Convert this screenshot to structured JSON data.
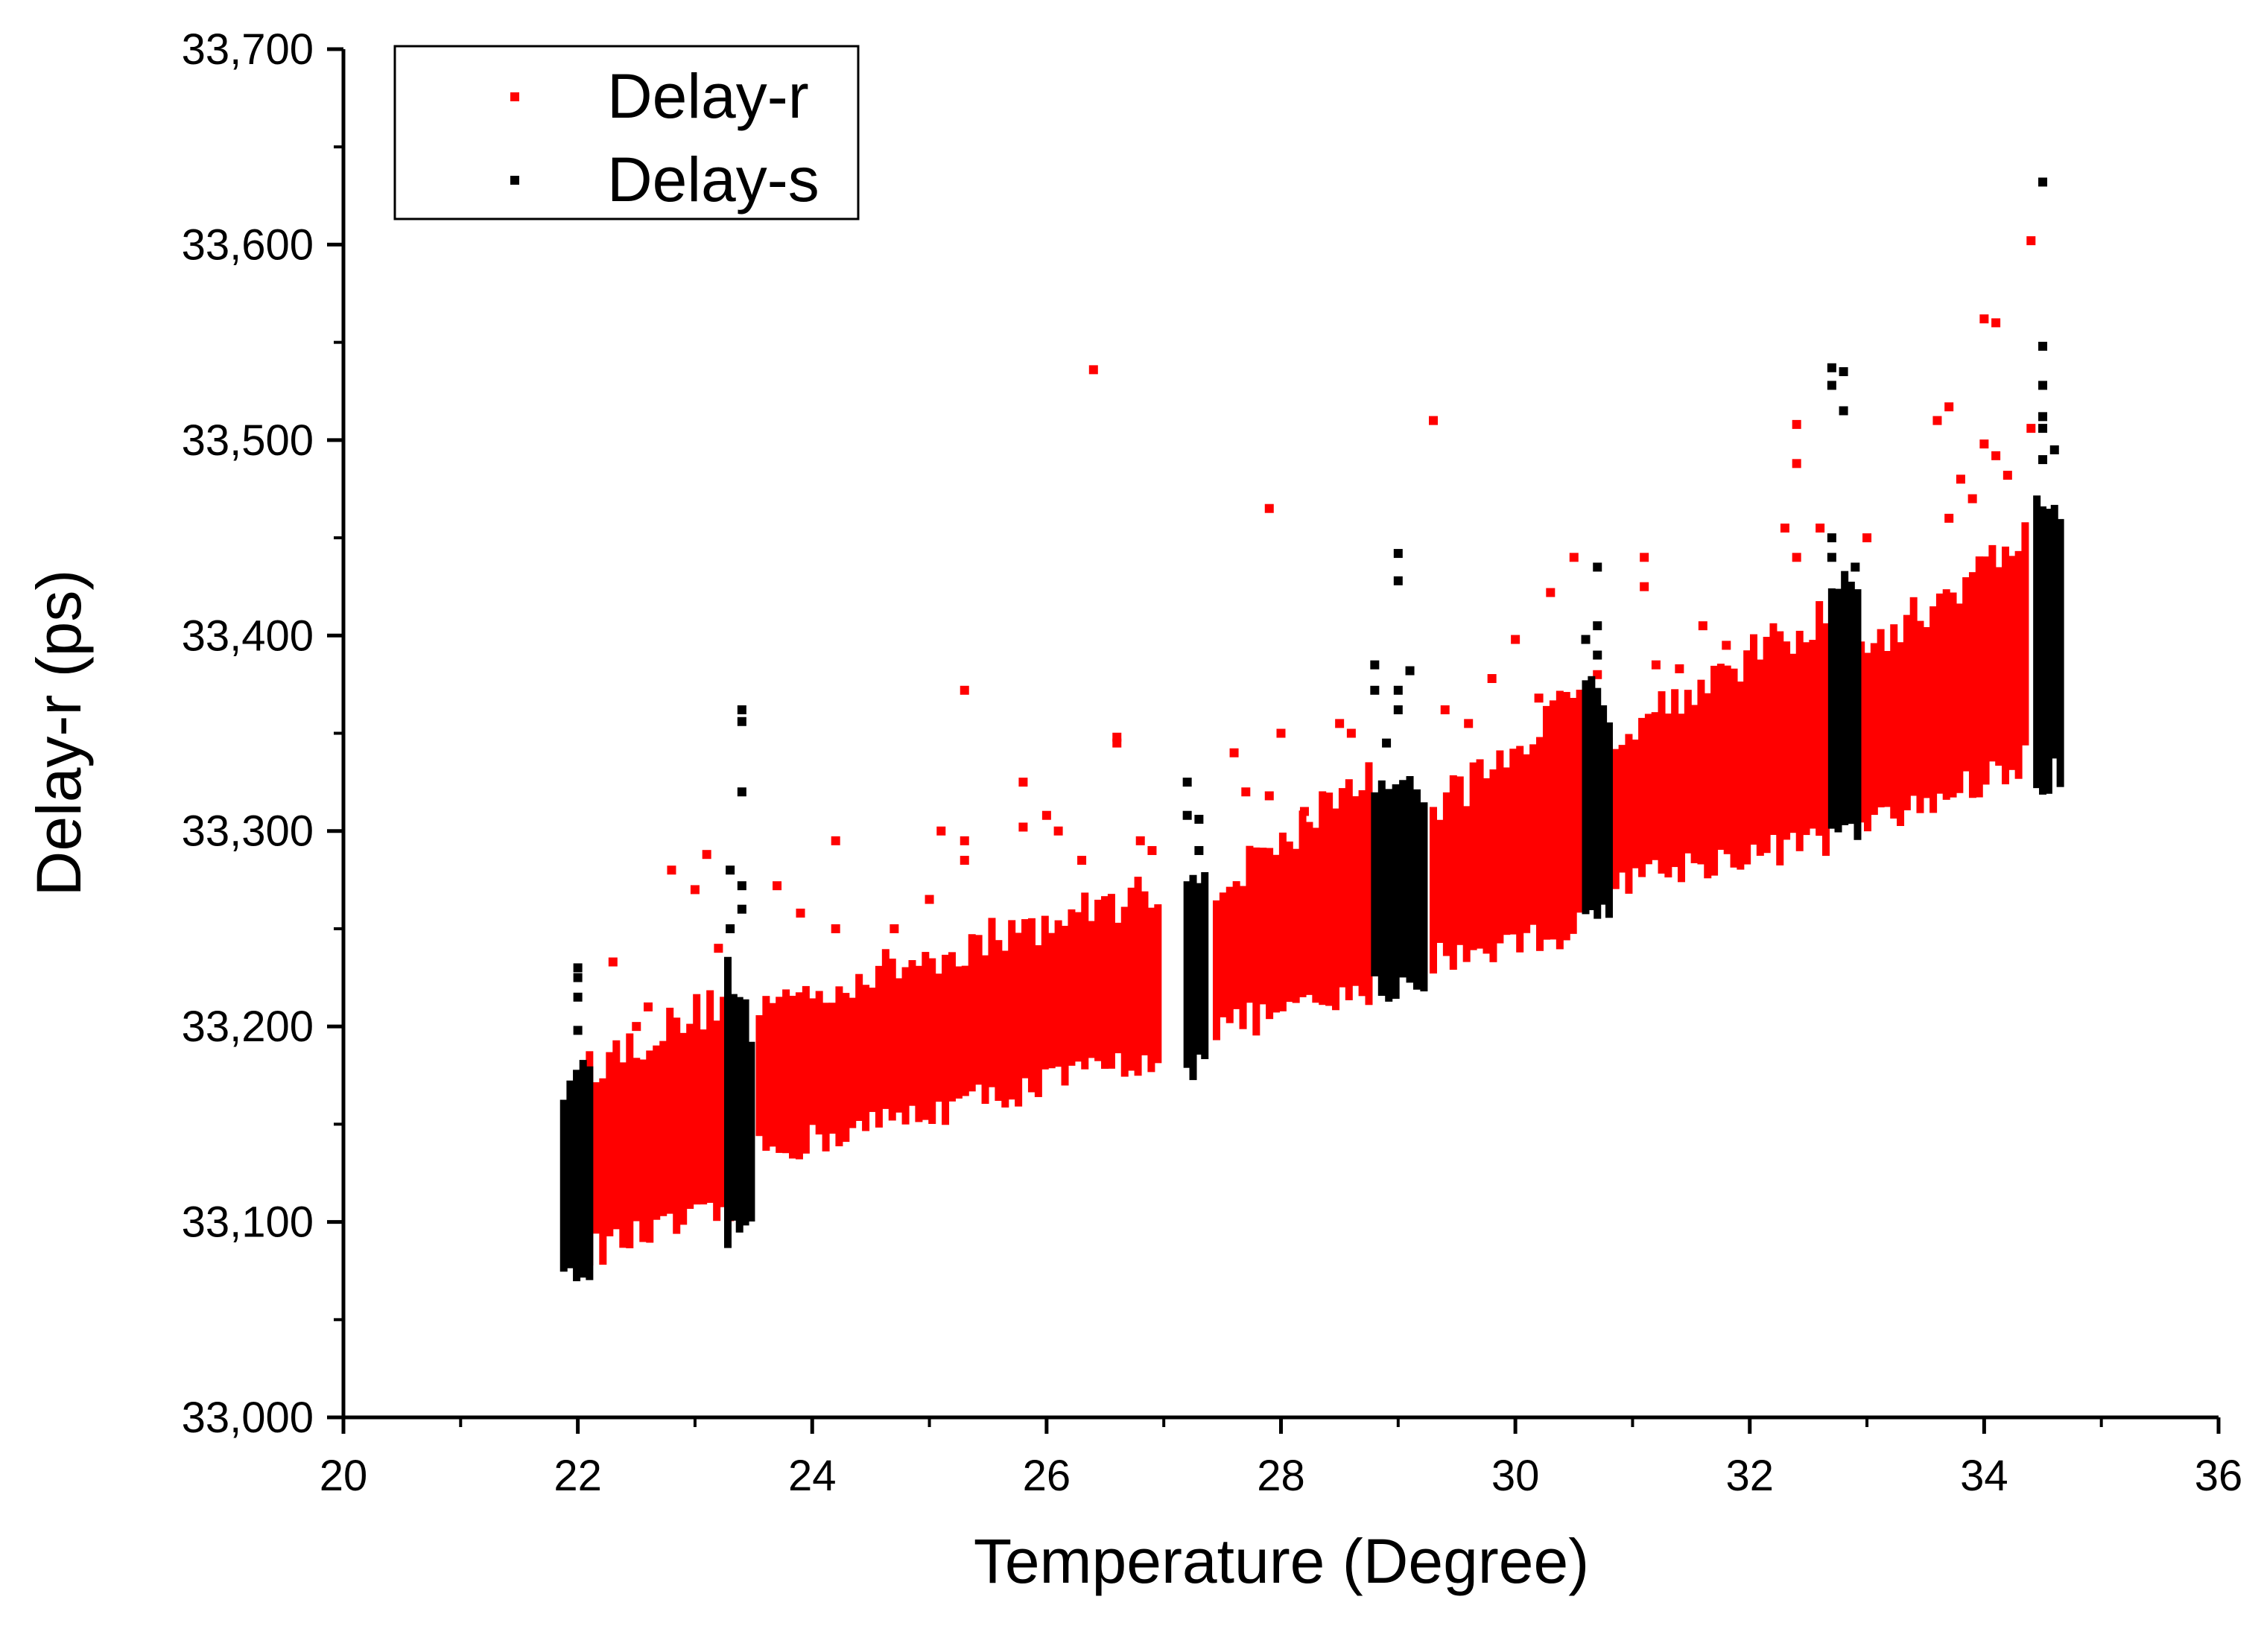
{
  "chart_data": {
    "type": "scatter",
    "title": "",
    "xlabel": "Temperature (Degree)",
    "ylabel": "Delay-r (ps)",
    "xlim": [
      20,
      36
    ],
    "ylim": [
      33000,
      33700
    ],
    "x_ticks": [
      20,
      22,
      24,
      26,
      28,
      30,
      32,
      34,
      36
    ],
    "y_ticks": [
      33000,
      33100,
      33200,
      33300,
      33400,
      33500,
      33600,
      33700
    ],
    "y_tick_labels": [
      "33,000",
      "33,100",
      "33,200",
      "33,300",
      "33,400",
      "33,500",
      "33,600",
      "33,700"
    ],
    "x_tick_labels": [
      "20",
      "22",
      "24",
      "26",
      "28",
      "30",
      "32",
      "34",
      "36"
    ],
    "legend_position": "top-left",
    "series": [
      {
        "name": "Delay-r",
        "color": "#ff0000",
        "bands": [
          {
            "x": [
              22.1,
              23.3
            ],
            "low": [
              33085,
              33105
            ],
            "high": [
              33180,
              33215
            ]
          },
          {
            "x": [
              23.55,
              26.95
            ],
            "low": [
              33135,
              33185
            ],
            "high": [
              33210,
              33270
            ]
          },
          {
            "x": [
              27.45,
              28.75
            ],
            "low": [
              33200,
              33215
            ],
            "high": [
              33270,
              33330
            ]
          },
          {
            "x": [
              29.3,
              30.55
            ],
            "low": [
              33235,
              33250
            ],
            "high": [
              33310,
              33370
            ]
          },
          {
            "x": [
              30.8,
              32.65
            ],
            "low": [
              33275,
              33295
            ],
            "high": [
              33350,
              33410
            ]
          },
          {
            "x": [
              32.95,
              34.35
            ],
            "low": [
              33300,
              33335
            ],
            "high": [
              33390,
              33450
            ]
          }
        ],
        "outliers": [
          [
            22.3,
            33233
          ],
          [
            22.5,
            33200
          ],
          [
            22.8,
            33280
          ],
          [
            23.1,
            33288
          ],
          [
            23.0,
            33270
          ],
          [
            23.2,
            33240
          ],
          [
            22.6,
            33210
          ],
          [
            23.7,
            33272
          ],
          [
            23.9,
            33258
          ],
          [
            24.2,
            33295
          ],
          [
            24.2,
            33250
          ],
          [
            24.7,
            33250
          ],
          [
            25.0,
            33265
          ],
          [
            25.1,
            33300
          ],
          [
            25.3,
            33372
          ],
          [
            25.3,
            33295
          ],
          [
            25.3,
            33285
          ],
          [
            25.8,
            33325
          ],
          [
            25.8,
            33302
          ],
          [
            26.0,
            33308
          ],
          [
            26.1,
            33300
          ],
          [
            26.3,
            33285
          ],
          [
            26.4,
            33536
          ],
          [
            26.6,
            33348
          ],
          [
            26.6,
            33345
          ],
          [
            26.8,
            33295
          ],
          [
            26.9,
            33290
          ],
          [
            27.6,
            33340
          ],
          [
            27.7,
            33320
          ],
          [
            27.9,
            33465
          ],
          [
            27.9,
            33318
          ],
          [
            28.0,
            33350
          ],
          [
            28.2,
            33310
          ],
          [
            28.5,
            33355
          ],
          [
            28.6,
            33350
          ],
          [
            29.3,
            33510
          ],
          [
            29.4,
            33362
          ],
          [
            29.6,
            33355
          ],
          [
            29.8,
            33378
          ],
          [
            30.0,
            33398
          ],
          [
            30.2,
            33368
          ],
          [
            30.3,
            33422
          ],
          [
            30.5,
            33440
          ],
          [
            30.7,
            33380
          ],
          [
            31.1,
            33440
          ],
          [
            31.1,
            33425
          ],
          [
            31.2,
            33385
          ],
          [
            31.4,
            33383
          ],
          [
            31.6,
            33405
          ],
          [
            31.8,
            33395
          ],
          [
            32.3,
            33455
          ],
          [
            32.4,
            33508
          ],
          [
            32.4,
            33488
          ],
          [
            32.4,
            33440
          ],
          [
            32.6,
            33455
          ],
          [
            33.0,
            33450
          ],
          [
            33.6,
            33510
          ],
          [
            33.7,
            33517
          ],
          [
            33.7,
            33460
          ],
          [
            33.8,
            33480
          ],
          [
            33.9,
            33470
          ],
          [
            34.0,
            33562
          ],
          [
            34.1,
            33560
          ],
          [
            34.0,
            33498
          ],
          [
            34.1,
            33492
          ],
          [
            34.2,
            33482
          ],
          [
            34.4,
            33602
          ],
          [
            34.4,
            33506
          ]
        ]
      },
      {
        "name": "Delay-s",
        "color": "#000000",
        "bands": [
          {
            "x": [
              21.88,
              22.1
            ],
            "low": [
              33075,
              33075
            ],
            "high": [
              33170,
              33185
            ]
          },
          {
            "x": [
              23.28,
              23.48
            ],
            "low": [
              33095,
              33105
            ],
            "high": [
              33230,
              33195
            ]
          },
          {
            "x": [
              27.2,
              27.35
            ],
            "low": [
              33182,
              33180
            ],
            "high": [
              33272,
              33285
            ]
          },
          {
            "x": [
              28.8,
              29.22
            ],
            "low": [
              33218,
              33215
            ],
            "high": [
              33330,
              33320
            ]
          },
          {
            "x": [
              30.6,
              30.8
            ],
            "low": [
              33250,
              33255
            ],
            "high": [
              33375,
              33365
            ]
          },
          {
            "x": [
              32.7,
              32.92
            ],
            "low": [
              33295,
              33298
            ],
            "high": [
              33425,
              33430
            ]
          },
          {
            "x": [
              34.45,
              34.65
            ],
            "low": [
              33325,
              33330
            ],
            "high": [
              33475,
              33460
            ]
          }
        ],
        "outliers": [
          [
            22.0,
            33230
          ],
          [
            22.0,
            33225
          ],
          [
            22.0,
            33215
          ],
          [
            22.0,
            33198
          ],
          [
            23.4,
            33362
          ],
          [
            23.4,
            33356
          ],
          [
            23.4,
            33320
          ],
          [
            23.3,
            33280
          ],
          [
            23.4,
            33272
          ],
          [
            23.4,
            33260
          ],
          [
            23.3,
            33250
          ],
          [
            27.2,
            33325
          ],
          [
            27.2,
            33308
          ],
          [
            27.3,
            33306
          ],
          [
            27.3,
            33290
          ],
          [
            28.8,
            33385
          ],
          [
            29.0,
            33442
          ],
          [
            29.0,
            33428
          ],
          [
            29.0,
            33372
          ],
          [
            28.8,
            33372
          ],
          [
            29.1,
            33382
          ],
          [
            29.0,
            33362
          ],
          [
            28.9,
            33345
          ],
          [
            30.7,
            33435
          ],
          [
            30.7,
            33405
          ],
          [
            30.6,
            33398
          ],
          [
            30.7,
            33390
          ],
          [
            32.7,
            33537
          ],
          [
            32.7,
            33528
          ],
          [
            32.8,
            33535
          ],
          [
            32.8,
            33515
          ],
          [
            32.7,
            33450
          ],
          [
            32.7,
            33440
          ],
          [
            32.9,
            33435
          ],
          [
            32.9,
            33420
          ],
          [
            34.5,
            33632
          ],
          [
            34.5,
            33548
          ],
          [
            34.5,
            33528
          ],
          [
            34.5,
            33512
          ],
          [
            34.5,
            33506
          ],
          [
            34.6,
            33495
          ],
          [
            34.5,
            33490
          ]
        ]
      }
    ]
  }
}
